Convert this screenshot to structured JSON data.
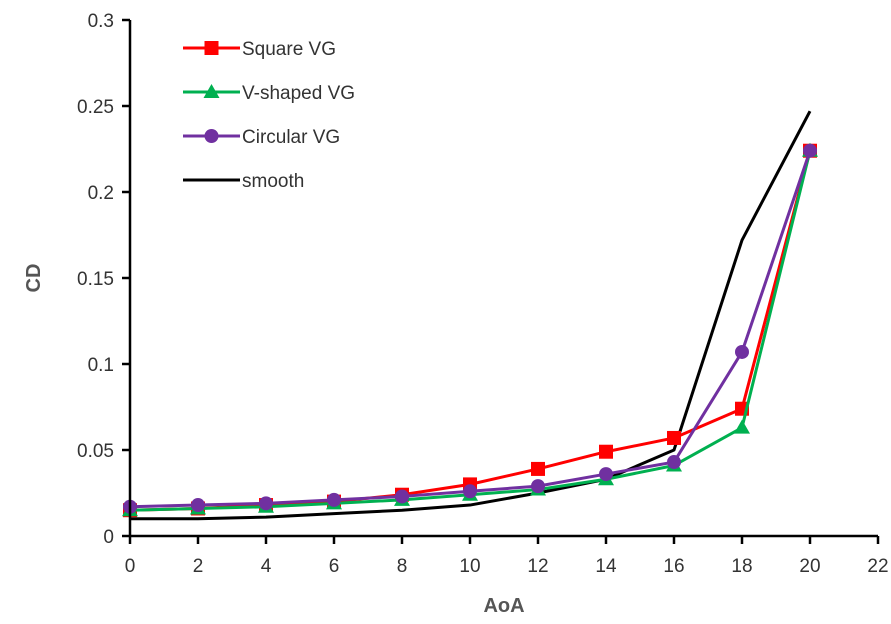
{
  "chart_data": {
    "type": "line",
    "xlabel": "AoA",
    "ylabel": "CD",
    "xlim": [
      0,
      22
    ],
    "ylim": [
      0,
      0.3
    ],
    "xticks": [
      0,
      2,
      4,
      6,
      8,
      10,
      12,
      14,
      16,
      18,
      20,
      22
    ],
    "yticks": [
      0,
      0.05,
      0.1,
      0.15,
      0.2,
      0.25,
      0.3
    ],
    "ytick_labels": [
      "0",
      "0.05",
      "0.1",
      "0.15",
      "0.2",
      "0.25",
      "0.3"
    ],
    "grid": false,
    "legend_position": "top-left",
    "x": [
      0,
      2,
      4,
      6,
      8,
      10,
      12,
      14,
      16,
      18,
      20
    ],
    "series": [
      {
        "name": "Square VG",
        "color": "#ff0000",
        "marker": "square",
        "values": [
          0.015,
          0.016,
          0.018,
          0.02,
          0.024,
          0.03,
          0.039,
          0.049,
          0.057,
          0.074,
          0.224
        ]
      },
      {
        "name": "V-shaped  VG",
        "color": "#00b050",
        "marker": "triangle",
        "values": [
          0.015,
          0.016,
          0.017,
          0.019,
          0.021,
          0.024,
          0.027,
          0.033,
          0.041,
          0.063,
          0.224
        ]
      },
      {
        "name": "Circular VG",
        "color": "#7030a0",
        "marker": "circle",
        "values": [
          0.017,
          0.018,
          0.019,
          0.021,
          0.023,
          0.026,
          0.029,
          0.036,
          0.043,
          0.107,
          0.224
        ]
      },
      {
        "name": "smooth",
        "color": "#000000",
        "marker": "none",
        "values": [
          0.01,
          0.01,
          0.011,
          0.013,
          0.015,
          0.018,
          0.025,
          0.033,
          0.05,
          0.172,
          0.247
        ]
      }
    ]
  }
}
